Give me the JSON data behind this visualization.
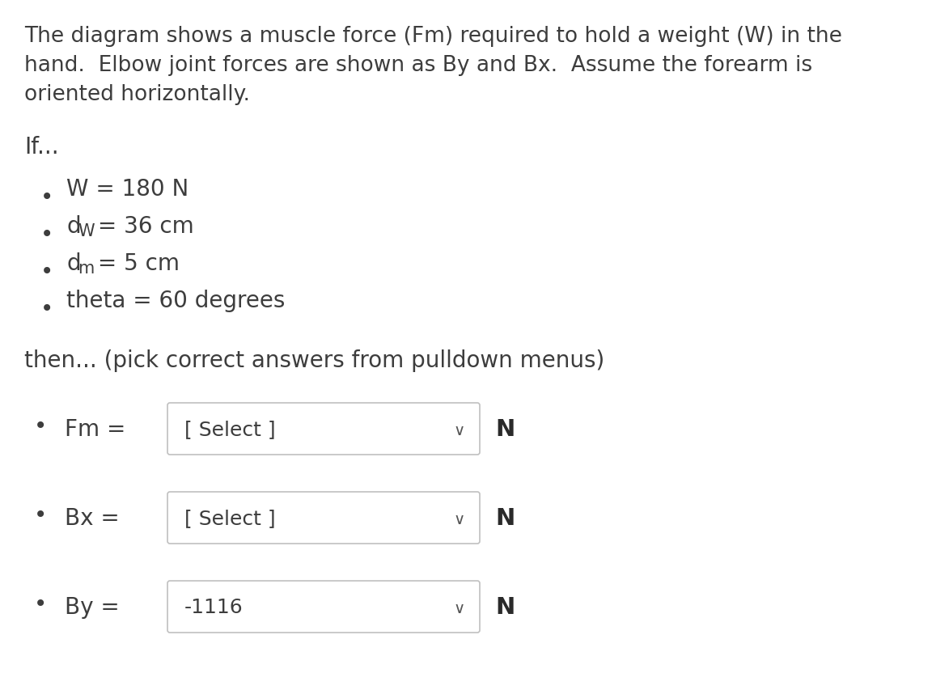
{
  "background_color": "#ffffff",
  "paragraph_lines": [
    "The diagram shows a muscle force (Fm) required to hold a weight (W) in the",
    "hand.  Elbow joint forces are shown as By and Bx.  Assume the forearm is",
    "oriented horizontally."
  ],
  "if_label": "If...",
  "then_text": "then... (pick correct answers from pulldown menus)",
  "dropdowns": [
    {
      "label": "Fm =",
      "value": "[ Select ]",
      "unit": "N"
    },
    {
      "label": "Bx =",
      "value": "[ Select ]",
      "unit": "N"
    },
    {
      "label": "By =",
      "value": "-1116",
      "unit": "N"
    }
  ],
  "font_size_para": 19,
  "font_size_bullet": 20,
  "font_size_sub": 15,
  "font_size_dropdown_label": 20,
  "font_size_dropdown_value": 18,
  "font_size_unit": 21,
  "text_color": "#3d3d3d",
  "dropdown_border_color": "#c0c0c0",
  "chevron_color": "#555555",
  "unit_color": "#2a2a2a"
}
